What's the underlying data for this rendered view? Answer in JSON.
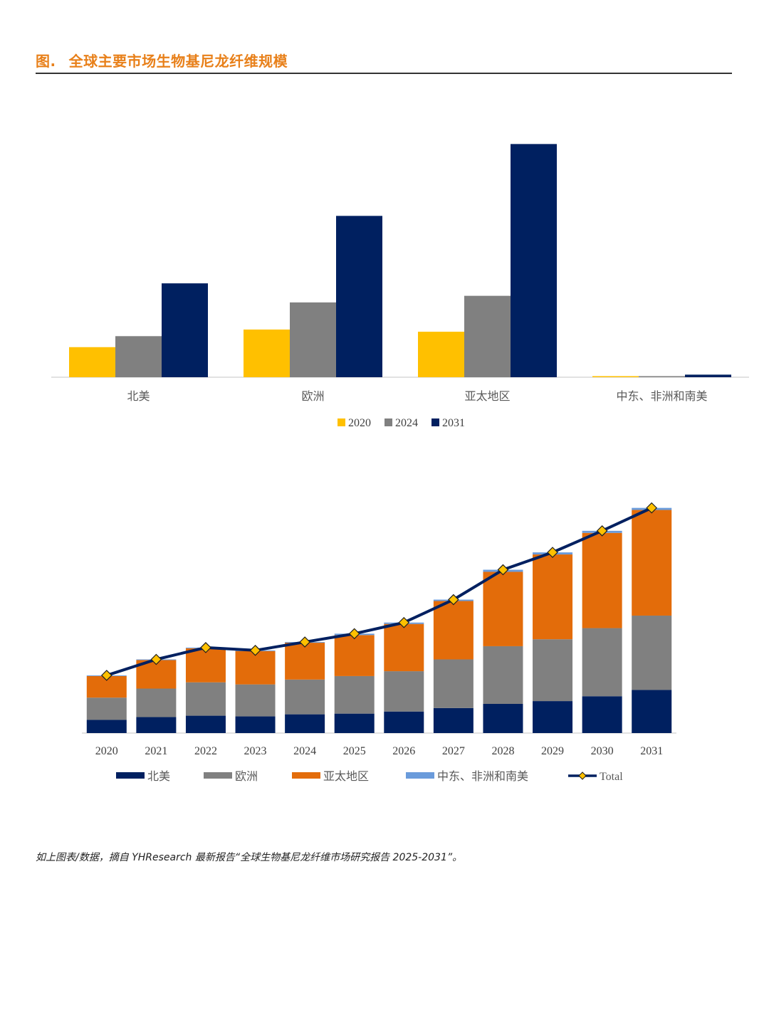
{
  "header": {
    "figure_label": "图.",
    "title": "全球主要市场生物基尼龙纤维规模"
  },
  "footer": {
    "source": "如上图表/数据，摘自 YHResearch 最新报告“全球生物基尼龙纤维市场研究报告 2025-2031”。"
  },
  "chart_data": [
    {
      "type": "bar",
      "categories": [
        "北美",
        "欧洲",
        "亚太地区",
        "中东、非洲和南美"
      ],
      "series": [
        {
          "name": "2020",
          "color": "#FFC000",
          "values": [
            41,
            65,
            62,
            0.8
          ]
        },
        {
          "name": "2024",
          "color": "#808080",
          "values": [
            56,
            102,
            111,
            1.2
          ]
        },
        {
          "name": "2031",
          "color": "#002060",
          "values": [
            128,
            220,
            318,
            3.5
          ]
        }
      ],
      "ylim": [
        0,
        330
      ],
      "legend": "bottom",
      "grid": false
    },
    {
      "type": "bar",
      "stacked": true,
      "categories": [
        "2020",
        "2021",
        "2022",
        "2023",
        "2024",
        "2025",
        "2026",
        "2027",
        "2028",
        "2029",
        "2030",
        "2031"
      ],
      "series": [
        {
          "name": "北美",
          "color": "#002060",
          "values": [
            19,
            23,
            25,
            24,
            27,
            28,
            31,
            36,
            42,
            46,
            53,
            62
          ]
        },
        {
          "name": "欧洲",
          "color": "#808080",
          "values": [
            32,
            41,
            48,
            46,
            50,
            54,
            58,
            70,
            83,
            89,
            98,
            107
          ]
        },
        {
          "name": "亚太地区",
          "color": "#E36C0A",
          "values": [
            31,
            41,
            49,
            48,
            53,
            59,
            68,
            84,
            107,
            122,
            137,
            152
          ]
        },
        {
          "name": "中东、非洲和南美",
          "color": "#6A9BDB",
          "values": [
            1,
            1,
            1,
            1,
            1,
            2,
            2,
            2,
            3,
            3,
            3,
            3
          ]
        }
      ],
      "line": {
        "name": "Total",
        "color": "#002060",
        "marker_color": "#FFC000",
        "values": [
          83,
          106,
          123,
          119,
          131,
          143,
          159,
          192,
          235,
          260,
          291,
          324
        ]
      },
      "ylim": [
        0,
        340
      ],
      "legend": "bottom",
      "grid": false
    }
  ]
}
